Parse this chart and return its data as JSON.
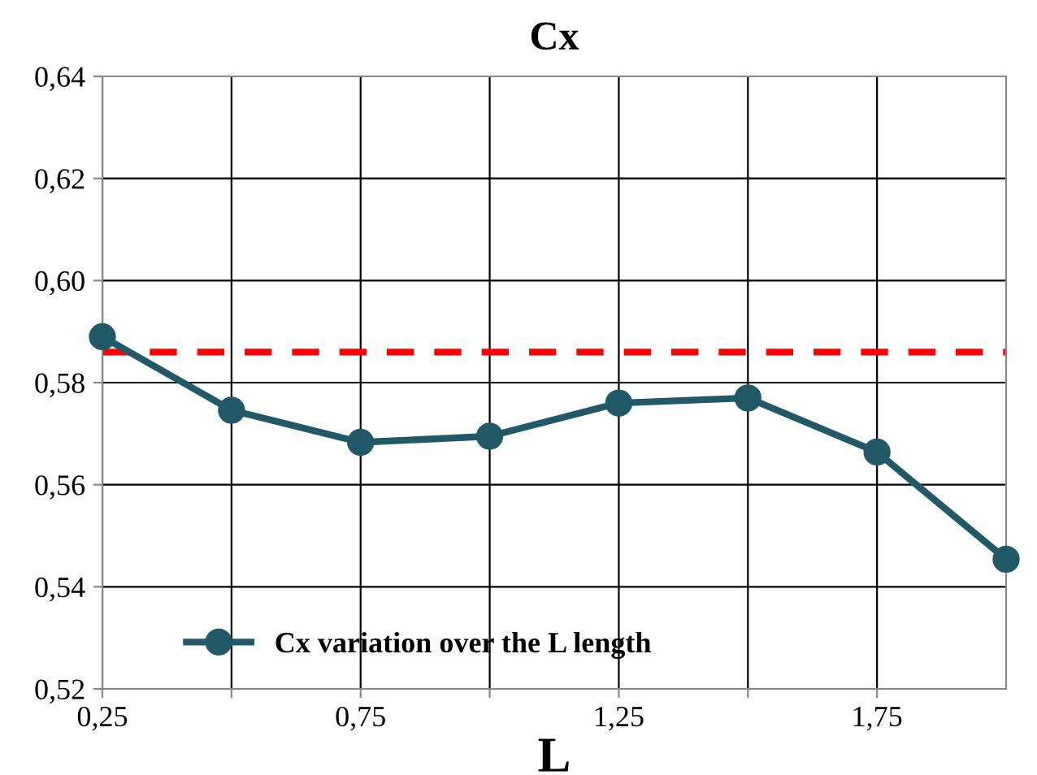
{
  "chart_data": {
    "type": "line",
    "title": "Cx",
    "xlabel": "L",
    "x": [
      0.25,
      0.5,
      0.75,
      1.0,
      1.25,
      1.5,
      1.75,
      2.0
    ],
    "series": [
      {
        "name": "Cx variation over the L length",
        "color": "#215968",
        "values": [
          0.589,
          0.5746,
          0.5683,
          0.5695,
          0.576,
          0.577,
          0.5664,
          0.5454
        ]
      }
    ],
    "xlim": [
      0.25,
      2.0
    ],
    "xticks": [
      {
        "value": 0.25,
        "label": "0,25"
      },
      {
        "value": 0.5,
        "label": null
      },
      {
        "value": 0.75,
        "label": "0,75"
      },
      {
        "value": 1.0,
        "label": null
      },
      {
        "value": 1.25,
        "label": "1,25"
      },
      {
        "value": 1.5,
        "label": null
      },
      {
        "value": 1.75,
        "label": "1,75"
      }
    ],
    "ylim": [
      0.52,
      0.64
    ],
    "yticks": [
      {
        "value": 0.52,
        "label": "0,52"
      },
      {
        "value": 0.54,
        "label": "0,54"
      },
      {
        "value": 0.56,
        "label": "0,56"
      },
      {
        "value": 0.58,
        "label": "0,58"
      },
      {
        "value": 0.6,
        "label": "0,60"
      },
      {
        "value": 0.62,
        "label": "0,62"
      },
      {
        "value": 0.64,
        "label": "0,64"
      }
    ],
    "ref_lines": [
      {
        "axis": "y",
        "value": 0.586,
        "color": "#ff0000",
        "line_style": "dashed"
      }
    ],
    "grid": true,
    "legend": "bottom left",
    "marker": "circle",
    "line_style": "solid"
  }
}
